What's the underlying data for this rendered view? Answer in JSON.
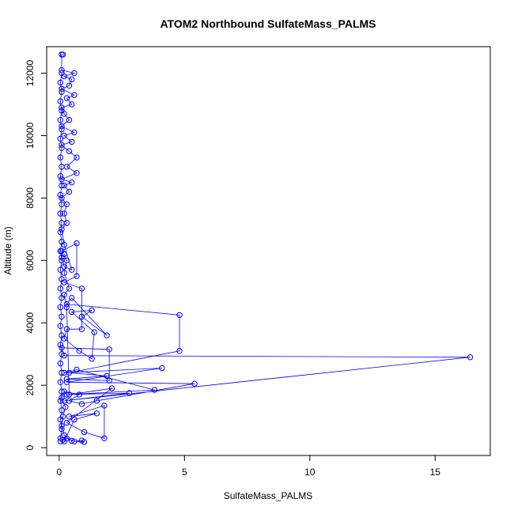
{
  "chart_data": {
    "type": "line",
    "title": "ATOM2 Northbound SulfateMass_PALMS",
    "xlabel": "SulfateMass_PALMS",
    "ylabel": "Altitude (m)",
    "xlim": [
      -0.5,
      17.2
    ],
    "ylim": [
      -250,
      12850
    ],
    "x_ticks": [
      0,
      5,
      10,
      15
    ],
    "x_tick_labels": [
      "0",
      "5",
      "10",
      "15"
    ],
    "y_ticks": [
      0,
      2000,
      4000,
      6000,
      8000,
      10000,
      12000
    ],
    "y_tick_labels": [
      "0",
      "2000",
      "4000",
      "6000",
      "8000",
      "10000",
      "12000"
    ],
    "grid": false,
    "marker": "open-circle",
    "series": [
      {
        "color": "#0000ff",
        "points": [
          [
            0.05,
            200
          ],
          [
            0.15,
            250
          ],
          [
            0.3,
            300
          ],
          [
            0.6,
            200
          ],
          [
            0.9,
            230
          ],
          [
            1.0,
            180
          ],
          [
            0.5,
            220
          ],
          [
            0.2,
            400
          ],
          [
            0.1,
            700
          ],
          [
            0.15,
            1000
          ],
          [
            0.25,
            1300
          ],
          [
            0.1,
            1600
          ],
          [
            0.2,
            1800
          ],
          [
            0.8,
            1700
          ],
          [
            0.4,
            1500
          ],
          [
            0.9,
            1400
          ],
          [
            1.5,
            1500
          ],
          [
            5.4,
            2050
          ],
          [
            0.3,
            2100
          ],
          [
            4.1,
            2550
          ],
          [
            0.2,
            2400
          ],
          [
            0.7,
            2500
          ],
          [
            3.8,
            1850
          ],
          [
            0.3,
            1700
          ],
          [
            2.8,
            1750
          ],
          [
            0.2,
            1500
          ],
          [
            16.4,
            2900
          ],
          [
            0.2,
            2950
          ],
          [
            0.1,
            3200
          ],
          [
            2.0,
            3150
          ],
          [
            2.0,
            2150
          ],
          [
            0.3,
            2200
          ],
          [
            1.9,
            2300
          ],
          [
            0.4,
            2400
          ],
          [
            4.8,
            3100
          ],
          [
            4.8,
            4250
          ],
          [
            0.3,
            4600
          ],
          [
            0.5,
            4800
          ],
          [
            1.9,
            3600
          ],
          [
            0.9,
            4200
          ],
          [
            1.3,
            4400
          ],
          [
            0.5,
            4350
          ],
          [
            1.4,
            3700
          ],
          [
            1.3,
            2850
          ],
          [
            0.8,
            3100
          ],
          [
            0.2,
            3500
          ],
          [
            0.3,
            3800
          ],
          [
            0.9,
            3800
          ],
          [
            0.9,
            5100
          ],
          [
            0.2,
            5300
          ],
          [
            0.7,
            5500
          ],
          [
            0.7,
            6550
          ],
          [
            0.1,
            6300
          ],
          [
            0.1,
            6100
          ],
          [
            0.2,
            5800
          ],
          [
            0.5,
            5700
          ],
          [
            0.2,
            6500
          ],
          [
            0.1,
            7000
          ],
          [
            0.3,
            7200
          ],
          [
            0.2,
            7500
          ],
          [
            0.3,
            7800
          ],
          [
            0.1,
            8000
          ],
          [
            0.4,
            8200
          ],
          [
            0.2,
            8400
          ],
          [
            0.5,
            8500
          ],
          [
            0.1,
            8600
          ],
          [
            0.7,
            8800
          ],
          [
            0.3,
            9000
          ],
          [
            0.7,
            9300
          ],
          [
            0.4,
            9500
          ],
          [
            0.1,
            9700
          ],
          [
            0.5,
            9800
          ],
          [
            0.2,
            10000
          ],
          [
            0.6,
            10100
          ],
          [
            0.1,
            10300
          ],
          [
            0.4,
            10500
          ],
          [
            0.2,
            10700
          ],
          [
            0.1,
            10900
          ],
          [
            0.5,
            11000
          ],
          [
            0.3,
            11200
          ],
          [
            0.6,
            11300
          ],
          [
            0.1,
            11500
          ],
          [
            0.4,
            11600
          ],
          [
            0.5,
            11800
          ],
          [
            0.2,
            11900
          ],
          [
            0.6,
            12000
          ],
          [
            0.1,
            12100
          ],
          [
            0.1,
            12600
          ],
          [
            0.15,
            12600
          ]
        ]
      },
      {
        "color": "#0000ff",
        "points": [
          [
            0.05,
            300
          ],
          [
            0.1,
            600
          ],
          [
            0.05,
            900
          ],
          [
            0.1,
            1200
          ],
          [
            0.05,
            1500
          ],
          [
            0.1,
            1800
          ],
          [
            0.05,
            2100
          ],
          [
            0.1,
            2400
          ],
          [
            0.05,
            2700
          ],
          [
            0.1,
            3000
          ],
          [
            0.05,
            3300
          ],
          [
            0.1,
            3600
          ],
          [
            0.05,
            3900
          ],
          [
            0.1,
            4200
          ],
          [
            0.05,
            4500
          ],
          [
            0.1,
            4800
          ],
          [
            0.05,
            5100
          ],
          [
            0.1,
            5400
          ],
          [
            0.05,
            5700
          ],
          [
            0.1,
            6000
          ],
          [
            0.05,
            6300
          ],
          [
            0.1,
            6600
          ],
          [
            0.05,
            6900
          ],
          [
            0.1,
            7200
          ],
          [
            0.05,
            7500
          ],
          [
            0.1,
            7800
          ],
          [
            0.05,
            8100
          ],
          [
            0.1,
            8400
          ],
          [
            0.05,
            8700
          ],
          [
            0.1,
            9000
          ],
          [
            0.05,
            9300
          ],
          [
            0.1,
            9600
          ],
          [
            0.05,
            9900
          ],
          [
            0.1,
            10200
          ],
          [
            0.05,
            10500
          ],
          [
            0.1,
            10800
          ],
          [
            0.05,
            11100
          ],
          [
            0.1,
            11400
          ],
          [
            0.05,
            11700
          ],
          [
            0.1,
            12000
          ]
        ]
      },
      {
        "color": "#0000ff",
        "points": [
          [
            0.2,
            200
          ],
          [
            0.6,
            900
          ],
          [
            1.5,
            1100
          ],
          [
            0.4,
            1000
          ],
          [
            1.8,
            1350
          ],
          [
            1.8,
            300
          ],
          [
            1.0,
            500
          ],
          [
            0.3,
            800
          ],
          [
            2.1,
            1900
          ],
          [
            0.4,
            1700
          ],
          [
            0.3,
            4500
          ],
          [
            0.2,
            4900
          ],
          [
            0.4,
            5100
          ],
          [
            0.2,
            5600
          ],
          [
            0.3,
            6000
          ],
          [
            0.2,
            6200
          ]
        ]
      }
    ]
  }
}
